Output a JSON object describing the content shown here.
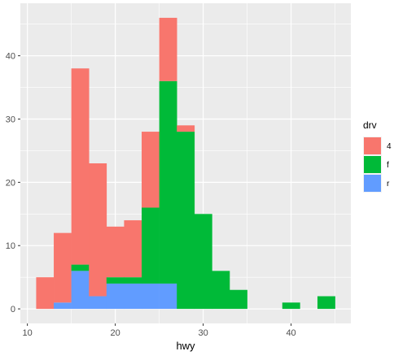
{
  "chart_data": {
    "type": "bar",
    "stacked": true,
    "xlabel": "hwy",
    "ylabel": "",
    "xlim": [
      9.2,
      46.8
    ],
    "ylim": [
      -2.3,
      48.3
    ],
    "x_ticks": [
      10,
      20,
      30,
      40
    ],
    "y_ticks": [
      0,
      10,
      20,
      30,
      40
    ],
    "x_tick_labels": [
      "10",
      "20",
      "30",
      "40"
    ],
    "y_tick_labels": [
      "0",
      "10",
      "20",
      "30",
      "40"
    ],
    "bin_width": 2,
    "bin_starts": [
      11,
      13,
      15,
      17,
      19,
      21,
      23,
      25,
      27,
      29,
      31,
      33,
      35,
      37,
      39,
      41,
      43
    ],
    "series": [
      {
        "name": "4",
        "color": "#F8766D",
        "values": [
          5,
          11,
          31,
          21,
          8,
          9,
          12,
          10,
          1,
          0,
          0,
          0,
          0,
          0,
          0,
          0,
          0
        ]
      },
      {
        "name": "f",
        "color": "#00BA38",
        "values": [
          0,
          0,
          1,
          0,
          1,
          1,
          12,
          32,
          28,
          15,
          6,
          3,
          0,
          0,
          1,
          0,
          2
        ]
      },
      {
        "name": "r",
        "color": "#619CFF",
        "values": [
          0,
          1,
          6,
          2,
          4,
          4,
          4,
          4,
          0,
          0,
          0,
          0,
          0,
          0,
          0,
          0,
          0
        ]
      }
    ],
    "legend": {
      "title": "drv",
      "position": "right"
    },
    "grid": true,
    "panel_background": "#EBEBEB"
  }
}
